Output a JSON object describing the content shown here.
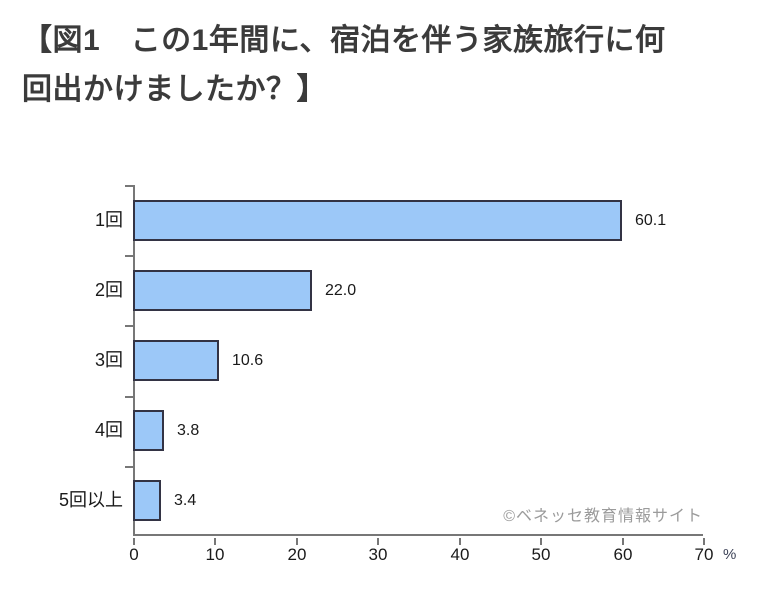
{
  "page": {
    "background": "#ffffff"
  },
  "title": {
    "line1": "【図1　この1年間に、宿泊を伴う家族旅行に何",
    "line2": "回出かけましたか？】"
  },
  "watermark": "©ベネッセ教育情報サイト",
  "chart_data": {
    "type": "bar",
    "orientation": "horizontal",
    "title": "【図1　この1年間に、宿泊を伴う家族旅行に何回出かけましたか？】",
    "categories": [
      "1回",
      "2回",
      "3回",
      "4回",
      "5回以上"
    ],
    "values": [
      60.1,
      22.0,
      10.6,
      3.8,
      3.4
    ],
    "value_labels": [
      "60.1",
      "22.0",
      "10.6",
      "3.8",
      "3.4"
    ],
    "x_ticks": [
      "0",
      "10",
      "20",
      "30",
      "40",
      "50",
      "60",
      "70"
    ],
    "x_unit": "%",
    "xlim": [
      0,
      70
    ],
    "xlabel": "",
    "ylabel": "",
    "grid": false,
    "legend": false,
    "colors": {
      "bar_fill": "#9cc8f8",
      "bar_border": "#333344",
      "axis": "#777777",
      "label": "#1a1a1a",
      "title": "#3b3b3b",
      "watermark": "#9b9b9b",
      "background": "#ffffff"
    }
  }
}
